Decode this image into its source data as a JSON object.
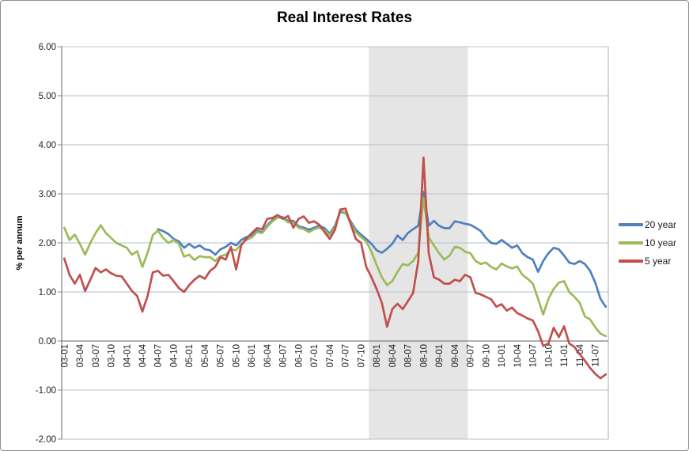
{
  "chart_data": {
    "type": "line",
    "title": "Real Interest Rates",
    "ylabel": "% per annum",
    "x_start": "2003-01",
    "x_frequency": "monthly",
    "n_points": 105,
    "x_tick_every": 3,
    "x_tick_labels": [
      "03-01",
      "03-04",
      "03-07",
      "03-10",
      "04-01",
      "04-04",
      "04-07",
      "04-10",
      "05-01",
      "05-04",
      "05-07",
      "05-10",
      "06-01",
      "06-04",
      "06-07",
      "06-10",
      "07-01",
      "07-04",
      "07-07",
      "07-10",
      "08-01",
      "08-04",
      "08-07",
      "08-10",
      "09-01",
      "09-04",
      "09-07",
      "09-10",
      "10-01",
      "10-04",
      "10-07",
      "10-10",
      "11-01",
      "11-04",
      "11-07"
    ],
    "ylim": [
      -2,
      6
    ],
    "y_tick_labels": [
      "6.00",
      "5.00",
      "4.00",
      "3.00",
      "2.00",
      "1.00",
      "0.00",
      "-1.00",
      "-2.00"
    ],
    "y_tick_values": [
      6,
      5,
      4,
      3,
      2,
      1,
      0,
      -1,
      -2
    ],
    "grid": true,
    "legend_position": "right",
    "recession_band": {
      "from_index": 59,
      "to_index": 78
    },
    "series": [
      {
        "name": "20 year",
        "color": "#4F81BD",
        "values": [
          null,
          null,
          null,
          null,
          null,
          null,
          null,
          null,
          null,
          null,
          null,
          null,
          null,
          null,
          null,
          null,
          null,
          null,
          2.28,
          2.24,
          2.18,
          2.08,
          2.03,
          1.9,
          1.98,
          1.9,
          1.95,
          1.87,
          1.85,
          1.76,
          1.87,
          1.92,
          2.0,
          1.95,
          2.06,
          2.12,
          2.16,
          2.25,
          2.22,
          2.36,
          2.47,
          2.55,
          2.52,
          2.45,
          2.45,
          2.34,
          2.31,
          2.27,
          2.31,
          2.35,
          2.3,
          2.19,
          2.35,
          2.63,
          2.61,
          2.44,
          2.27,
          2.17,
          2.08,
          1.98,
          1.85,
          1.8,
          1.88,
          1.98,
          2.15,
          2.06,
          2.2,
          2.28,
          2.35,
          3.04,
          2.35,
          2.45,
          2.35,
          2.3,
          2.3,
          2.44,
          2.42,
          2.39,
          2.37,
          2.31,
          2.24,
          2.1,
          2.0,
          1.98,
          2.06,
          1.98,
          1.9,
          1.95,
          1.79,
          1.71,
          1.66,
          1.41,
          1.63,
          1.79,
          1.9,
          1.87,
          1.74,
          1.6,
          1.57,
          1.63,
          1.57,
          1.43,
          1.19,
          0.86,
          0.7
        ]
      },
      {
        "name": "10 year",
        "color": "#9BBB59",
        "values": [
          2.31,
          2.06,
          2.17,
          1.98,
          1.76,
          2.0,
          2.2,
          2.36,
          2.2,
          2.1,
          2.0,
          1.95,
          1.9,
          1.76,
          1.83,
          1.51,
          1.8,
          2.16,
          2.25,
          2.1,
          2.0,
          2.06,
          1.98,
          1.72,
          1.76,
          1.65,
          1.73,
          1.71,
          1.71,
          1.63,
          1.73,
          1.76,
          1.87,
          1.85,
          1.98,
          2.06,
          2.11,
          2.22,
          2.2,
          2.33,
          2.44,
          2.52,
          2.5,
          2.42,
          2.42,
          2.31,
          2.28,
          2.22,
          2.28,
          2.31,
          2.26,
          2.16,
          2.31,
          2.66,
          2.62,
          2.41,
          2.22,
          2.12,
          2.03,
          1.82,
          1.55,
          1.3,
          1.14,
          1.22,
          1.41,
          1.57,
          1.54,
          1.63,
          1.8,
          2.92,
          2.11,
          1.95,
          1.79,
          1.66,
          1.74,
          1.92,
          1.9,
          1.82,
          1.79,
          1.63,
          1.57,
          1.6,
          1.51,
          1.46,
          1.58,
          1.52,
          1.48,
          1.52,
          1.35,
          1.27,
          1.17,
          0.86,
          0.54,
          0.86,
          1.06,
          1.19,
          1.22,
          1.0,
          0.9,
          0.78,
          0.5,
          0.44,
          0.28,
          0.15,
          0.1
        ]
      },
      {
        "name": "5 year",
        "color": "#C0504D",
        "values": [
          1.68,
          1.35,
          1.17,
          1.35,
          1.02,
          1.25,
          1.49,
          1.4,
          1.46,
          1.38,
          1.33,
          1.32,
          1.17,
          1.02,
          0.92,
          0.6,
          0.92,
          1.4,
          1.43,
          1.33,
          1.35,
          1.22,
          1.08,
          1.0,
          1.14,
          1.25,
          1.33,
          1.27,
          1.43,
          1.51,
          1.71,
          1.66,
          1.92,
          1.46,
          1.95,
          2.09,
          2.2,
          2.3,
          2.28,
          2.49,
          2.51,
          2.57,
          2.49,
          2.55,
          2.31,
          2.49,
          2.54,
          2.41,
          2.44,
          2.37,
          2.22,
          2.08,
          2.27,
          2.68,
          2.7,
          2.39,
          2.08,
          2.0,
          1.51,
          1.3,
          1.06,
          0.78,
          0.29,
          0.65,
          0.76,
          0.65,
          0.81,
          0.98,
          1.63,
          3.74,
          1.79,
          1.3,
          1.25,
          1.17,
          1.17,
          1.25,
          1.22,
          1.35,
          1.3,
          0.98,
          0.95,
          0.9,
          0.85,
          0.7,
          0.75,
          0.62,
          0.68,
          0.57,
          0.52,
          0.46,
          0.42,
          0.2,
          -0.1,
          -0.05,
          0.27,
          0.08,
          0.3,
          -0.05,
          -0.12,
          -0.27,
          -0.4,
          -0.55,
          -0.67,
          -0.76,
          -0.68
        ]
      }
    ]
  },
  "colors": {
    "gridline": "#B5C2D3",
    "axis_line": "#808080",
    "plot_right_border": "#A8A8A8",
    "recession_band": "#E5E5E5",
    "tick_text": "#1f1f1f",
    "background": "#FFFFFF",
    "frame_border": "#8F8F8F"
  }
}
